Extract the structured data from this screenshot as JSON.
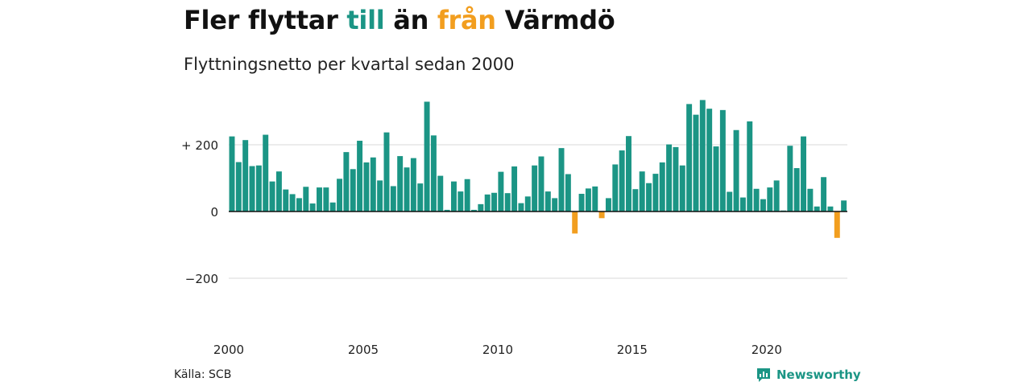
{
  "header": {
    "title_part1": "Fler flyttar ",
    "title_pos": "till",
    "title_part2": " än ",
    "title_neg": "från",
    "title_part3": " Värmdö",
    "subtitle": "Flyttningsnetto per kvartal sedan 2000"
  },
  "footer": {
    "source": "Källa: SCB",
    "brand": "Newsworthy"
  },
  "colors": {
    "positive": "#1b9585",
    "negative": "#f29e1f",
    "grid": "#d9d9d9"
  },
  "chart_data": {
    "type": "bar",
    "start_year": 2000,
    "quarters_per_year": 4,
    "ylim": [
      -300,
      360
    ],
    "y_ticks": [
      {
        "value": 200,
        "label": "+ 200"
      },
      {
        "value": 0,
        "label": "0"
      },
      {
        "value": -200,
        "label": "−200"
      }
    ],
    "x_ticks": [
      "2000",
      "2005",
      "2010",
      "2015",
      "2020"
    ],
    "values": [
      225,
      148,
      214,
      136,
      138,
      230,
      90,
      120,
      66,
      52,
      40,
      74,
      24,
      72,
      72,
      27,
      98,
      178,
      127,
      212,
      147,
      162,
      93,
      237,
      76,
      166,
      132,
      160,
      84,
      329,
      228,
      107,
      5,
      90,
      60,
      97,
      5,
      22,
      51,
      56,
      119,
      55,
      135,
      25,
      45,
      138,
      165,
      60,
      40,
      190,
      112,
      -66,
      53,
      69,
      75,
      -20,
      40,
      141,
      183,
      226,
      67,
      120,
      85,
      113,
      147,
      201,
      193,
      138,
      322,
      290,
      334,
      308,
      195,
      304,
      59,
      244,
      42,
      270,
      68,
      37,
      72,
      93,
      3,
      197,
      130,
      225,
      68,
      15,
      103,
      15,
      -79,
      33
    ]
  }
}
